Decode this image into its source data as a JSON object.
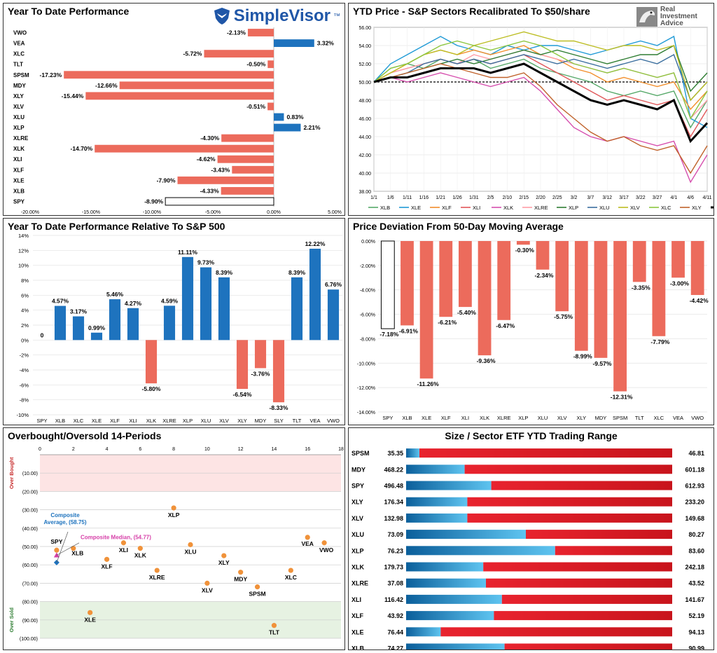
{
  "panels": {
    "ytd": {
      "title": "Year To Date Performance",
      "logo_text": "SimpleVisor",
      "logo_tm": "™",
      "colors": {
        "negative": "#ec6b5c",
        "positive": "#1e73be",
        "spy": "#ffffff"
      }
    },
    "recal": {
      "title": "YTD Price - S&P Sectors Recalibrated To $50/share",
      "logo_text_lines": [
        "Real",
        "Investment",
        "Advice"
      ]
    },
    "rel": {
      "title": "Year To Date Performance Relative To S&P 500"
    },
    "dev": {
      "title": "Price Deviation From 50-Day Moving Average"
    },
    "ob": {
      "title": "Overbought/Oversold 14-Periods",
      "band_overbought": "Over Bought",
      "band_oversold": "Over Sold",
      "avg_label_lines": [
        "Composite",
        "Average, (58.75)"
      ],
      "median_label": "Composite Median, (54.77)",
      "colors": {
        "point": "#f0923a",
        "avg": "#1e73be",
        "median": "#d63fa8"
      }
    },
    "range": {
      "title": "Size / Sector ETF YTD Trading Range"
    }
  },
  "chart_data": [
    {
      "id": "ytd_performance",
      "type": "bar",
      "orientation": "horizontal",
      "categories": [
        "VWO",
        "VEA",
        "XLC",
        "TLT",
        "SPSM",
        "MDY",
        "XLY",
        "XLV",
        "XLU",
        "XLP",
        "XLRE",
        "XLK",
        "XLI",
        "XLF",
        "XLE",
        "XLB",
        "SPY"
      ],
      "values": [
        -2.13,
        3.32,
        -5.72,
        -0.5,
        -17.23,
        -12.66,
        -15.44,
        -0.51,
        0.83,
        2.21,
        -4.3,
        -14.7,
        -4.62,
        -3.43,
        -7.9,
        -4.33,
        -8.9
      ],
      "value_labels": [
        "-2.13%",
        "3.32%",
        "-5.72%",
        "-0.50%",
        "-17.23%",
        "-12.66%",
        "-15.44%",
        "-0.51%",
        "0.83%",
        "2.21%",
        "-4.30%",
        "-14.70%",
        "-4.62%",
        "-3.43%",
        "-7.90%",
        "-4.33%",
        "-8.90%"
      ],
      "xlim": [
        -20,
        5
      ],
      "x_ticks": [
        -20,
        -15,
        -10,
        -5,
        0,
        5
      ],
      "x_tick_labels": [
        "-20.00%",
        "-15.00%",
        "-10.00%",
        "-5.00%",
        "0.00%",
        "5.00%"
      ]
    },
    {
      "id": "recalibrated_price",
      "type": "line",
      "x": [
        "1/1",
        "1/6",
        "1/11",
        "1/16",
        "1/21",
        "1/26",
        "1/31",
        "2/5",
        "2/10",
        "2/15",
        "2/20",
        "2/25",
        "3/2",
        "3/7",
        "3/12",
        "3/17",
        "3/22",
        "3/27",
        "4/1",
        "4/6",
        "4/11"
      ],
      "ylim": [
        38,
        56
      ],
      "y_ticks": [
        38,
        40,
        42,
        44,
        46,
        48,
        50,
        52,
        54,
        56
      ],
      "y_tick_labels": [
        "38.00",
        "40.00",
        "42.00",
        "44.00",
        "46.00",
        "48.00",
        "50.00",
        "52.00",
        "54.00",
        "56.00"
      ],
      "reference_line": 50,
      "series": [
        {
          "name": "XLB",
          "color": "#55a868",
          "values": [
            50,
            51.5,
            52,
            51.5,
            52.5,
            52,
            52.5,
            51.5,
            52,
            52.5,
            51.5,
            51,
            50.5,
            50,
            49,
            48.5,
            49,
            48.5,
            49,
            45,
            48
          ]
        },
        {
          "name": "XLE",
          "color": "#1f9ad6",
          "values": [
            50,
            52,
            53,
            54,
            55,
            54,
            53.5,
            53,
            54,
            53.5,
            54,
            54,
            53.5,
            53,
            53.5,
            54,
            54.5,
            54,
            55,
            46,
            45
          ]
        },
        {
          "name": "XLF",
          "color": "#f28e2b",
          "values": [
            50,
            51,
            52,
            53,
            53.5,
            53,
            53.5,
            53,
            53.5,
            54,
            53,
            52.5,
            51.5,
            51,
            50,
            50.5,
            50,
            49.5,
            50,
            47,
            49
          ]
        },
        {
          "name": "XLI",
          "color": "#e15759",
          "values": [
            50,
            51,
            51.5,
            52,
            52.5,
            52,
            52.5,
            52,
            52.5,
            53,
            52,
            51,
            50,
            49,
            48,
            48.5,
            48,
            47.5,
            48,
            44,
            47
          ]
        },
        {
          "name": "XLK",
          "color": "#d64fae",
          "values": [
            50,
            50.5,
            50,
            50.5,
            51,
            50.5,
            50,
            49.5,
            50,
            50.5,
            49,
            47,
            45,
            44,
            43.5,
            44,
            43.5,
            43,
            43.5,
            39,
            42
          ]
        },
        {
          "name": "XLRE",
          "color": "#ff9da7",
          "values": [
            50,
            51,
            51.5,
            52,
            52.5,
            52,
            53,
            52.5,
            53,
            53.5,
            53,
            52.5,
            52,
            51.5,
            51,
            51.5,
            51,
            50.5,
            51,
            46,
            48
          ]
        },
        {
          "name": "XLP",
          "color": "#2e7d32",
          "values": [
            50,
            50.5,
            51,
            51.5,
            52,
            52.5,
            52,
            52.5,
            53,
            53.5,
            53,
            53.5,
            53,
            52.5,
            52,
            52.5,
            53,
            53,
            54,
            49,
            51
          ]
        },
        {
          "name": "XLU",
          "color": "#3a6e9e",
          "values": [
            50,
            50.5,
            51,
            52,
            52.5,
            52,
            52.5,
            52,
            52.5,
            53,
            52.5,
            52,
            52.5,
            52,
            51.5,
            52,
            52.5,
            52,
            53,
            48,
            50
          ]
        },
        {
          "name": "XLV",
          "color": "#bcbd22",
          "values": [
            50,
            51,
            52,
            53,
            53.5,
            53,
            54,
            54.5,
            55,
            55.5,
            55,
            54.5,
            54.5,
            54,
            53.5,
            54,
            54,
            53.5,
            54,
            48,
            50
          ]
        },
        {
          "name": "XLC",
          "color": "#8cc63f",
          "values": [
            50,
            51.5,
            52,
            53,
            54,
            54.5,
            54,
            53.5,
            54,
            54.5,
            54,
            53,
            52,
            51.5,
            51,
            51.5,
            51,
            50.5,
            51,
            46,
            49
          ]
        },
        {
          "name": "XLY",
          "color": "#c0622b",
          "values": [
            50,
            50.5,
            51,
            51.5,
            52,
            51.5,
            51,
            50.5,
            50.5,
            51,
            49.5,
            47.5,
            46,
            44.5,
            43.5,
            44,
            43,
            42.5,
            43,
            40,
            43
          ]
        },
        {
          "name": "SPY",
          "color": "#000000",
          "values": [
            50,
            50.5,
            50.5,
            51,
            51.5,
            51.5,
            51.5,
            51,
            51.5,
            52,
            51,
            50,
            49,
            48,
            47.5,
            48,
            47.5,
            47,
            48,
            43.5,
            45.5
          ]
        }
      ]
    },
    {
      "id": "relative_performance",
      "type": "bar",
      "categories": [
        "SPY",
        "XLB",
        "XLC",
        "XLE",
        "XLF",
        "XLI",
        "XLK",
        "XLRE",
        "XLP",
        "XLU",
        "XLV",
        "XLY",
        "MDY",
        "SLY",
        "TLT",
        "VEA",
        "VWO"
      ],
      "values": [
        0,
        4.57,
        3.17,
        0.99,
        5.46,
        4.27,
        -5.8,
        4.59,
        11.11,
        9.73,
        8.39,
        -6.54,
        -3.76,
        -8.33,
        8.39,
        12.22,
        6.76
      ],
      "value_labels": [
        "0",
        "4.57%",
        "3.17%",
        "0.99%",
        "5.46%",
        "4.27%",
        "-5.80%",
        "4.59%",
        "11.11%",
        "9.73%",
        "8.39%",
        "-6.54%",
        "-3.76%",
        "-8.33%",
        "8.39%",
        "12.22%",
        "6.76%"
      ],
      "ylim": [
        -10,
        14
      ],
      "y_ticks": [
        -10,
        -8,
        -6,
        -4,
        -2,
        0,
        2,
        4,
        6,
        8,
        10,
        12,
        14
      ],
      "y_tick_labels": [
        "-10%",
        "-8%",
        "-6%",
        "-4%",
        "-2%",
        "0%",
        "2%",
        "4%",
        "6%",
        "8%",
        "10%",
        "12%",
        "14%"
      ],
      "colors": {
        "positive": "#1e73be",
        "negative": "#ec6b5c"
      }
    },
    {
      "id": "deviation_50dma",
      "type": "bar",
      "categories": [
        "SPY",
        "XLB",
        "XLE",
        "XLF",
        "XLI",
        "XLK",
        "XLRE",
        "XLP",
        "XLU",
        "XLV",
        "XLY",
        "MDY",
        "SPSM",
        "TLT",
        "XLC",
        "VEA",
        "VWO"
      ],
      "values": [
        -7.18,
        -6.91,
        -11.26,
        -6.21,
        -5.4,
        -9.36,
        -6.47,
        -0.3,
        -2.34,
        -5.75,
        -8.99,
        -9.57,
        -12.31,
        -3.35,
        -7.79,
        -3.0,
        -4.42
      ],
      "value_labels": [
        "-7.18%",
        "-6.91%",
        "-11.26%",
        "-6.21%",
        "-5.40%",
        "-9.36%",
        "-6.47%",
        "-0.30%",
        "-2.34%",
        "-5.75%",
        "-8.99%",
        "-9.57%",
        "-12.31%",
        "-3.35%",
        "-7.79%",
        "-3.00%",
        "-4.42%"
      ],
      "ylim": [
        -14,
        0
      ],
      "y_ticks": [
        -14,
        -12,
        -10,
        -8,
        -6,
        -4,
        -2,
        0
      ],
      "y_tick_labels": [
        "-14.00%",
        "-12.00%",
        "-10.00%",
        "-8.00%",
        "-6.00%",
        "-4.00%",
        "-2.00%",
        "0.00%"
      ],
      "colors": {
        "bar": "#ec6b5c",
        "spy": "#ffffff"
      }
    },
    {
      "id": "overbought_oversold",
      "type": "scatter",
      "xlim": [
        0,
        18
      ],
      "x_ticks": [
        0,
        2,
        4,
        6,
        8,
        10,
        12,
        14,
        16,
        18
      ],
      "ylim": [
        0,
        100
      ],
      "y_ticks": [
        10,
        20,
        30,
        40,
        50,
        60,
        70,
        80,
        90,
        100
      ],
      "y_tick_labels": [
        "(10.00)",
        "(20.00)",
        "(30.00)",
        "(40.00)",
        "(50.00)",
        "(60.00)",
        "(70.00)",
        "(80.00)",
        "(90.00)",
        "(100.00)"
      ],
      "overbought_band": [
        0,
        20
      ],
      "oversold_band": [
        80,
        100
      ],
      "points": [
        {
          "label": "SPY",
          "x": 1,
          "y": 52
        },
        {
          "label": "XLB",
          "x": 2,
          "y": 51
        },
        {
          "label": "XLE",
          "x": 3,
          "y": 86
        },
        {
          "label": "XLF",
          "x": 4,
          "y": 57
        },
        {
          "label": "XLI",
          "x": 5,
          "y": 48
        },
        {
          "label": "XLK",
          "x": 6,
          "y": 51
        },
        {
          "label": "XLRE",
          "x": 7,
          "y": 63
        },
        {
          "label": "XLP",
          "x": 8,
          "y": 29
        },
        {
          "label": "XLU",
          "x": 9,
          "y": 49
        },
        {
          "label": "XLV",
          "x": 10,
          "y": 70
        },
        {
          "label": "XLY",
          "x": 11,
          "y": 55
        },
        {
          "label": "MDY",
          "x": 12,
          "y": 64
        },
        {
          "label": "SPSM",
          "x": 13,
          "y": 72
        },
        {
          "label": "TLT",
          "x": 14,
          "y": 93
        },
        {
          "label": "XLC",
          "x": 15,
          "y": 63
        },
        {
          "label": "VEA",
          "x": 16,
          "y": 45
        },
        {
          "label": "VWO",
          "x": 17,
          "y": 48
        }
      ],
      "composite_average": {
        "x": 1,
        "y": 58.75
      },
      "composite_median": {
        "x": 1,
        "y": 54.77
      }
    },
    {
      "id": "trading_range",
      "type": "bar",
      "orientation": "horizontal",
      "rows": [
        {
          "ticker": "SPSM",
          "low": "35.35",
          "high": "46.81",
          "position": 0.05
        },
        {
          "ticker": "MDY",
          "low": "468.22",
          "high": "601.18",
          "position": 0.22
        },
        {
          "ticker": "SPY",
          "low": "496.48",
          "high": "612.93",
          "position": 0.32
        },
        {
          "ticker": "XLY",
          "low": "176.34",
          "high": "233.20",
          "position": 0.23
        },
        {
          "ticker": "XLV",
          "low": "132.98",
          "high": "149.68",
          "position": 0.23
        },
        {
          "ticker": "XLU",
          "low": "73.09",
          "high": "80.27",
          "position": 0.45
        },
        {
          "ticker": "XLP",
          "low": "76.23",
          "high": "83.60",
          "position": 0.56
        },
        {
          "ticker": "XLK",
          "low": "179.73",
          "high": "242.18",
          "position": 0.29
        },
        {
          "ticker": "XLRE",
          "low": "37.08",
          "high": "43.52",
          "position": 0.3
        },
        {
          "ticker": "XLI",
          "low": "116.42",
          "high": "141.67",
          "position": 0.36
        },
        {
          "ticker": "XLF",
          "low": "43.92",
          "high": "52.19",
          "position": 0.33
        },
        {
          "ticker": "XLE",
          "low": "76.44",
          "high": "94.13",
          "position": 0.13
        },
        {
          "ticker": "XLB",
          "low": "74.27",
          "high": "90.99",
          "position": 0.37
        }
      ],
      "colors": {
        "low": "#1a7fc4",
        "high": "#e0202a"
      }
    }
  ]
}
